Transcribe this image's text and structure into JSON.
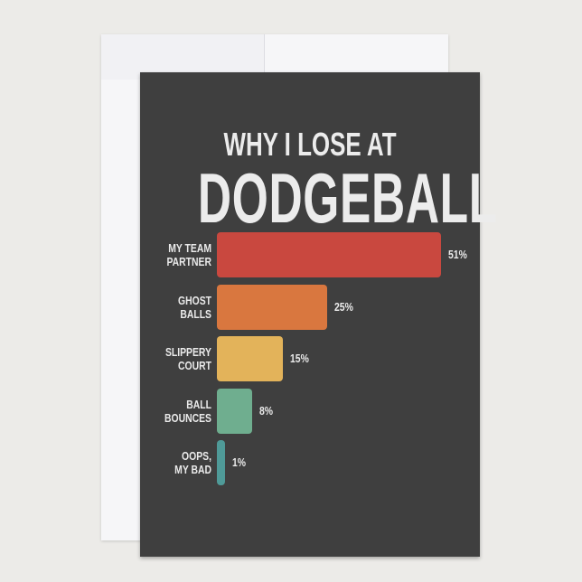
{
  "chart_data": {
    "type": "bar",
    "orientation": "horizontal",
    "title": "WHY I LOSE AT",
    "subtitle": "DODGEBALL",
    "categories": [
      "MY TEAM PARTNER",
      "GHOST BALLS",
      "SLIPPERY COURT",
      "BALL BOUNCES",
      "OOPS, MY BAD"
    ],
    "label_lines": [
      [
        "MY TEAM",
        "PARTNER"
      ],
      [
        "GHOST",
        "BALLS"
      ],
      [
        "SLIPPERY",
        "COURT"
      ],
      [
        "BALL",
        "BOUNCES"
      ],
      [
        "OOPS,",
        "MY BAD"
      ]
    ],
    "values": [
      51,
      25,
      15,
      8,
      1
    ],
    "value_labels": [
      "51%",
      "25%",
      "15%",
      "8%",
      "1%"
    ],
    "colors": [
      "#c9483f",
      "#d9773f",
      "#e3b35a",
      "#6fae8f",
      "#4f9a98"
    ],
    "grid": false,
    "axes_visible": false
  },
  "colors": {
    "card": "#3f3f3f",
    "text": "#eaeaea",
    "background": "#ecebe8"
  }
}
